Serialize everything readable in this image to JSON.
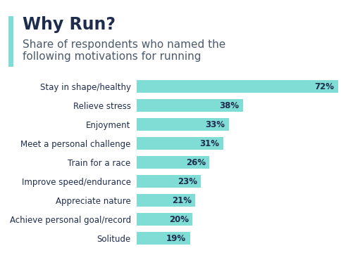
{
  "chart_data": {
    "type": "bar",
    "orientation": "horizontal",
    "title": "Why Run?",
    "subtitle": "Share of respondents who named the\nfollowing motivations for running",
    "categories": [
      "Stay in shape/healthy",
      "Relieve stress",
      "Enjoyment",
      "Meet a personal challenge",
      "Train for a race",
      "Improve speed/endurance",
      "Appreciate nature",
      "Achieve personal goal/record",
      "Solitude"
    ],
    "values": [
      72,
      38,
      33,
      31,
      26,
      23,
      21,
      20,
      19
    ],
    "value_labels": [
      "72%",
      "38%",
      "33%",
      "31%",
      "26%",
      "23%",
      "21%",
      "20%",
      "19%"
    ],
    "data_labels": true,
    "color": "#7fddd6",
    "xlim": [
      0,
      72
    ],
    "tick_labels": "y",
    "grid": false
  }
}
